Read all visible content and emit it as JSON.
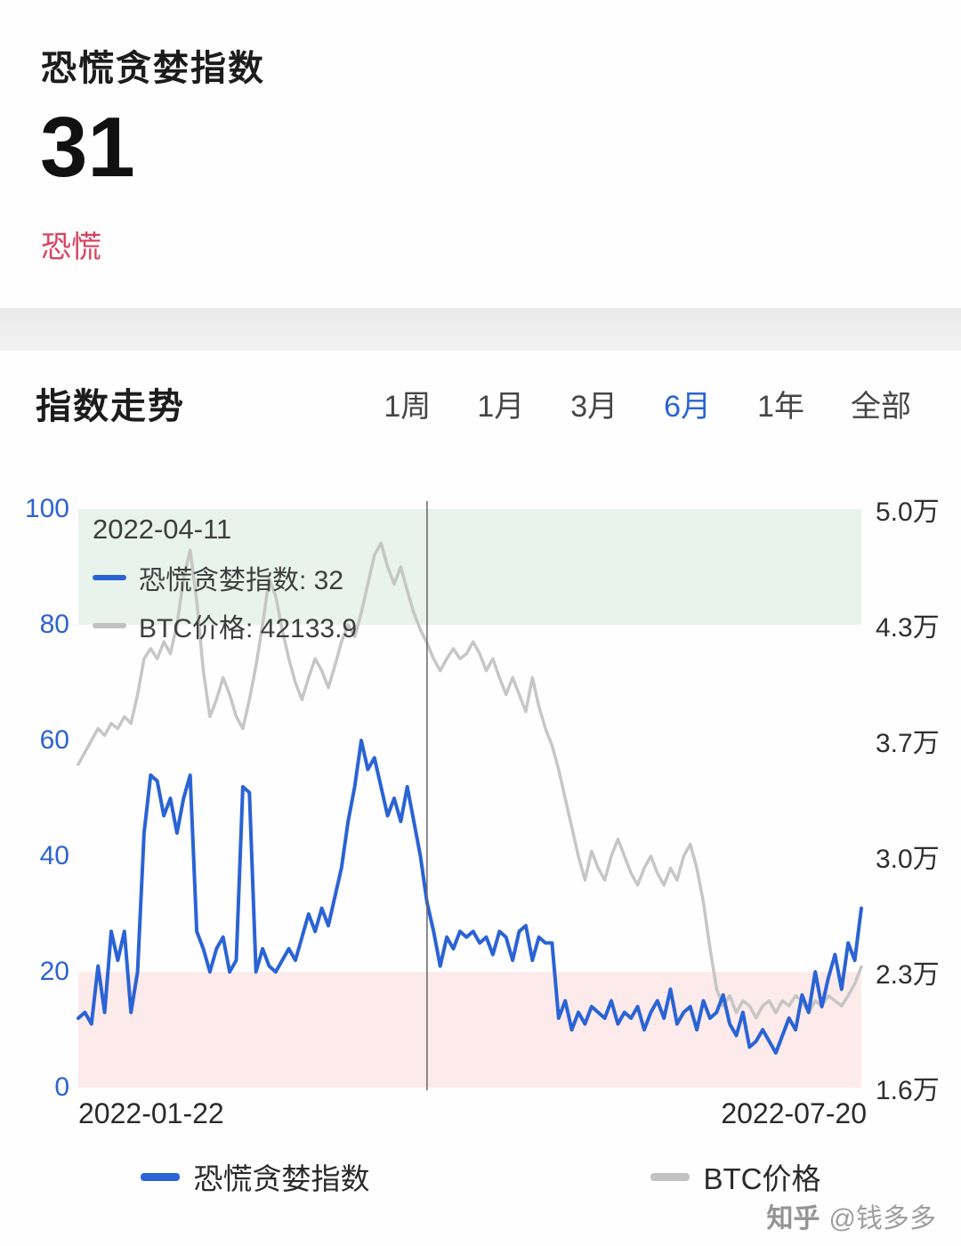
{
  "theme": {
    "accent": "#2a63d5",
    "status_red": "#d8415f",
    "crosshair": "#666666"
  },
  "header": {
    "title": "恐慌贪婪指数",
    "value": "31",
    "status": "恐慌"
  },
  "trend": {
    "title": "指数走势",
    "tabs": [
      {
        "label": "1周",
        "active": false
      },
      {
        "label": "1月",
        "active": false
      },
      {
        "label": "3月",
        "active": false
      },
      {
        "label": "6月",
        "active": true
      },
      {
        "label": "1年",
        "active": false
      },
      {
        "label": "全部",
        "active": false
      }
    ]
  },
  "tooltip": {
    "date": "2022-04-11",
    "items": [
      {
        "label": "恐慌贪婪指数",
        "value": "32",
        "color": "#2a63d5"
      },
      {
        "label": "BTC价格",
        "value": "42133.9",
        "color": "#c2c2c2"
      }
    ]
  },
  "chart_data": {
    "type": "line",
    "title": "指数走势",
    "x_labels": [
      "2022-01-22",
      "2022-07-20"
    ],
    "left_axis": {
      "range": [
        0,
        100
      ],
      "ticks": [
        0,
        20,
        40,
        60,
        80,
        100
      ],
      "color": "#2c63cf"
    },
    "right_axis": {
      "range": [
        16000,
        50000
      ],
      "ticks": [
        "1.6万",
        "2.3万",
        "3.0万",
        "3.7万",
        "4.3万",
        "5.0万"
      ],
      "color": "#2f2f2f"
    },
    "bands": [
      {
        "axis": "left",
        "from": 80,
        "to": 100,
        "color": "#e8f3ec"
      },
      {
        "axis": "left",
        "from": 0,
        "to": 20,
        "color": "#fdeaeb"
      }
    ],
    "grid": false,
    "legend_position": "bottom",
    "crosshair_index": 53,
    "series": [
      {
        "name": "恐慌贪婪指数",
        "axis": "left",
        "color": "#2a63d5",
        "values": [
          12,
          13,
          11,
          21,
          13,
          27,
          22,
          27,
          13,
          20,
          44,
          54,
          53,
          47,
          50,
          44,
          50,
          54,
          27,
          24,
          20,
          24,
          26,
          20,
          22,
          52,
          51,
          20,
          24,
          21,
          20,
          22,
          24,
          22,
          26,
          30,
          27,
          31,
          28,
          33,
          38,
          46,
          52,
          60,
          55,
          57,
          52,
          47,
          50,
          46,
          52,
          46,
          40,
          32,
          27,
          21,
          26,
          24,
          27,
          26,
          27,
          25,
          26,
          23,
          27,
          26,
          22,
          27,
          28,
          22,
          26,
          25,
          25,
          12,
          15,
          10,
          13,
          11,
          14,
          13,
          12,
          15,
          11,
          13,
          12,
          14,
          10,
          13,
          15,
          12,
          17,
          11,
          13,
          14,
          10,
          15,
          12,
          13,
          16,
          11,
          9,
          13,
          7,
          8,
          10,
          8,
          6,
          9,
          12,
          10,
          16,
          13,
          20,
          14,
          19,
          23,
          17,
          25,
          22,
          31
        ]
      },
      {
        "name": "BTC价格",
        "axis": "right",
        "color": "#c6c6c6",
        "values": [
          35000,
          35700,
          36400,
          37100,
          36700,
          37400,
          37100,
          37800,
          37400,
          39100,
          41200,
          41800,
          41200,
          42200,
          41500,
          43200,
          45900,
          47600,
          44600,
          40500,
          37800,
          38800,
          40100,
          39100,
          37800,
          37100,
          38800,
          40800,
          43200,
          45900,
          44900,
          42900,
          41200,
          39800,
          38800,
          40100,
          41200,
          40500,
          39500,
          40800,
          42200,
          43200,
          42500,
          43900,
          45600,
          47300,
          48000,
          46600,
          45600,
          46600,
          45200,
          43900,
          42900,
          42134,
          41200,
          40500,
          41200,
          41800,
          41200,
          41500,
          42200,
          41500,
          40500,
          41200,
          40100,
          39100,
          40100,
          39100,
          38100,
          40100,
          38400,
          37100,
          36100,
          34700,
          33000,
          31300,
          29600,
          28200,
          29900,
          28900,
          28200,
          29600,
          30600,
          29600,
          28600,
          27900,
          28900,
          29600,
          28600,
          27900,
          28900,
          28200,
          29600,
          30300,
          28900,
          26900,
          24200,
          21800,
          20800,
          21400,
          20400,
          21100,
          20800,
          20100,
          20800,
          21100,
          20400,
          21100,
          20800,
          21400,
          21100,
          20400,
          21100,
          20800,
          21400,
          21100,
          20800,
          21400,
          22100,
          23100
        ]
      }
    ]
  },
  "legend": [
    {
      "label": "恐慌贪婪指数",
      "color": "#2a63d5"
    },
    {
      "label": "BTC价格",
      "color": "#c2c2c2"
    }
  ],
  "watermark": {
    "brand": "知乎",
    "handle": "@钱多多"
  }
}
